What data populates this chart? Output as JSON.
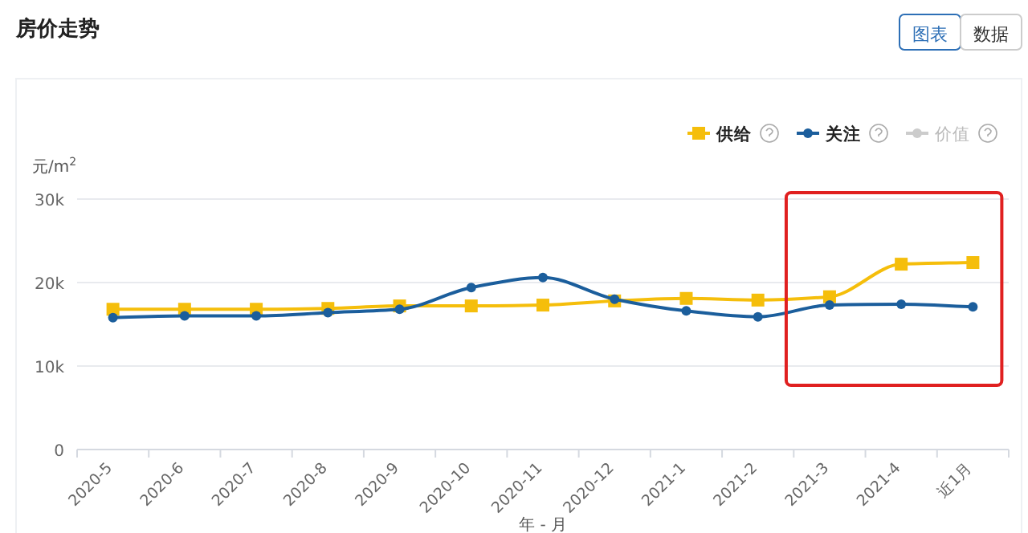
{
  "chart_data": {
    "type": "line",
    "title": "房价走势",
    "ylabel": "元/m$^{2}$",
    "xlabel": "年 - 月",
    "categories": [
      "2020-5",
      "2020-6",
      "2020-7",
      "2020-8",
      "2020-9",
      "2020-10",
      "2020-11",
      "2020-12",
      "2021-1",
      "2021-2",
      "2021-3",
      "2021-4",
      "近1月"
    ],
    "series": [
      {
        "name": "供给",
        "color": "#f5be0b",
        "marker": "square",
        "values": [
          16800,
          16800,
          16800,
          16900,
          17200,
          17200,
          17300,
          17800,
          18100,
          17900,
          18300,
          22200,
          22400
        ]
      },
      {
        "name": "关注",
        "color": "#1b5e9c",
        "marker": "circle",
        "values": [
          15800,
          16000,
          16000,
          16400,
          16800,
          19400,
          20600,
          18000,
          16600,
          15900,
          17300,
          17400,
          17100
        ]
      },
      {
        "name": "价值",
        "color": "#cccccc",
        "marker": "circle",
        "values": [
          null,
          null,
          null,
          null,
          null,
          null,
          null,
          null,
          null,
          null,
          null,
          null,
          null
        ]
      }
    ],
    "ylim": [
      0,
      30000
    ],
    "yticks": [
      {
        "value": 0,
        "label": "0"
      },
      {
        "value": 10000,
        "label": "10k"
      },
      {
        "value": 20000,
        "label": "20k"
      },
      {
        "value": 30000,
        "label": "30k"
      }
    ],
    "grid": "y",
    "legend": "top right",
    "annotations": [
      "图表",
      "数据"
    ]
  }
}
